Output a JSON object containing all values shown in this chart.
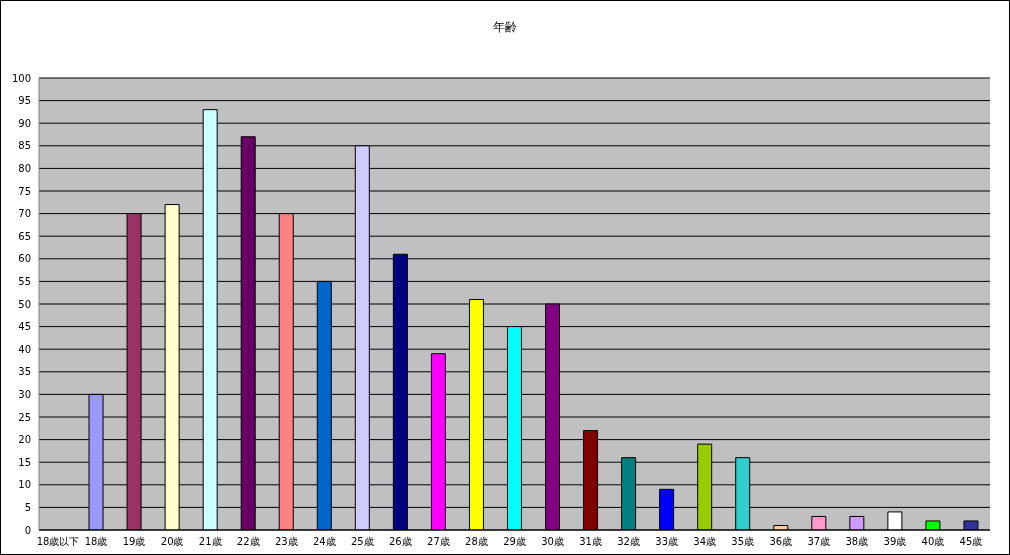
{
  "chart_data": {
    "type": "bar",
    "title": "年齢",
    "categories": [
      "18歳以下",
      "18歳",
      "19歳",
      "20歳",
      "21歳",
      "22歳",
      "23歳",
      "24歳",
      "25歳",
      "26歳",
      "27歳",
      "28歳",
      "29歳",
      "30歳",
      "31歳",
      "32歳",
      "33歳",
      "34歳",
      "35歳",
      "36歳",
      "37歳",
      "38歳",
      "39歳",
      "40歳",
      "45歳"
    ],
    "values": [
      0,
      30,
      70,
      72,
      93,
      87,
      70,
      55,
      85,
      61,
      39,
      51,
      45,
      50,
      22,
      16,
      9,
      19,
      16,
      1,
      3,
      3,
      4,
      2,
      2
    ],
    "colors": [
      "#9999ff",
      "#9999ff",
      "#993366",
      "#ffffcc",
      "#ccffff",
      "#660066",
      "#ff8080",
      "#0066cc",
      "#ccccff",
      "#000080",
      "#ff00ff",
      "#ffff00",
      "#00ffff",
      "#800080",
      "#800000",
      "#008080",
      "#0000ff",
      "#99cc00",
      "#33cccc",
      "#ffcc99",
      "#ff99cc",
      "#cc99ff",
      "#ffffff",
      "#00ff00",
      "#333399"
    ],
    "ylim": [
      0,
      100
    ],
    "yticks": [
      0,
      5,
      10,
      15,
      20,
      25,
      30,
      35,
      40,
      45,
      50,
      55,
      60,
      65,
      70,
      75,
      80,
      85,
      90,
      95,
      100
    ],
    "grid": "y",
    "legend": false
  }
}
